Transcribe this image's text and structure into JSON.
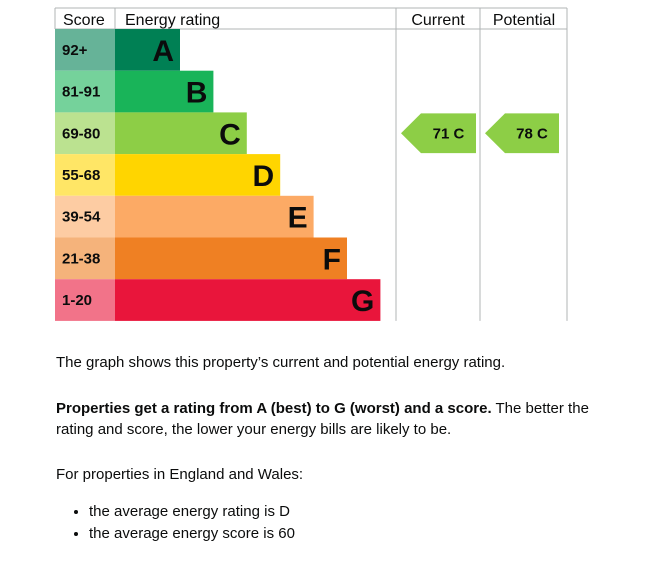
{
  "chart_data": {
    "type": "bar",
    "headers": {
      "score": "Score",
      "rating": "Energy rating",
      "current": "Current",
      "potential": "Potential"
    },
    "bands": [
      {
        "letter": "A",
        "range": "92+",
        "color": "#008054",
        "score_color": "#66b398",
        "min": 92,
        "max": 100
      },
      {
        "letter": "B",
        "range": "81-91",
        "color": "#19b459",
        "score_color": "#75d29b",
        "min": 81,
        "max": 91
      },
      {
        "letter": "C",
        "range": "69-80",
        "color": "#8dce46",
        "score_color": "#bbe290",
        "min": 69,
        "max": 80
      },
      {
        "letter": "D",
        "range": "55-68",
        "color": "#ffd500",
        "score_color": "#ffe666",
        "min": 55,
        "max": 68
      },
      {
        "letter": "E",
        "range": "39-54",
        "color": "#fcaa65",
        "score_color": "#fdcca3",
        "min": 39,
        "max": 54
      },
      {
        "letter": "F",
        "range": "21-38",
        "color": "#ef8023",
        "score_color": "#f5b37b",
        "min": 21,
        "max": 38
      },
      {
        "letter": "G",
        "range": "1-20",
        "color": "#e9153b",
        "score_color": "#f27389",
        "min": 1,
        "max": 20
      }
    ],
    "current": {
      "score": 71,
      "band": "C",
      "label": "71 C"
    },
    "potential": {
      "score": 78,
      "band": "C",
      "label": "78 C"
    },
    "pointer_color": "#8dce46"
  },
  "text": {
    "p1": "The graph shows this property’s current and potential energy rating.",
    "p2_bold": "Properties get a rating from A (best) to G (worst) and a score.",
    "p2_rest": " The better the rating and score, the lower your energy bills are likely to be.",
    "p3": "For properties in England and Wales:",
    "bullets": [
      "the average energy rating is D",
      "the average energy score is 60"
    ]
  }
}
